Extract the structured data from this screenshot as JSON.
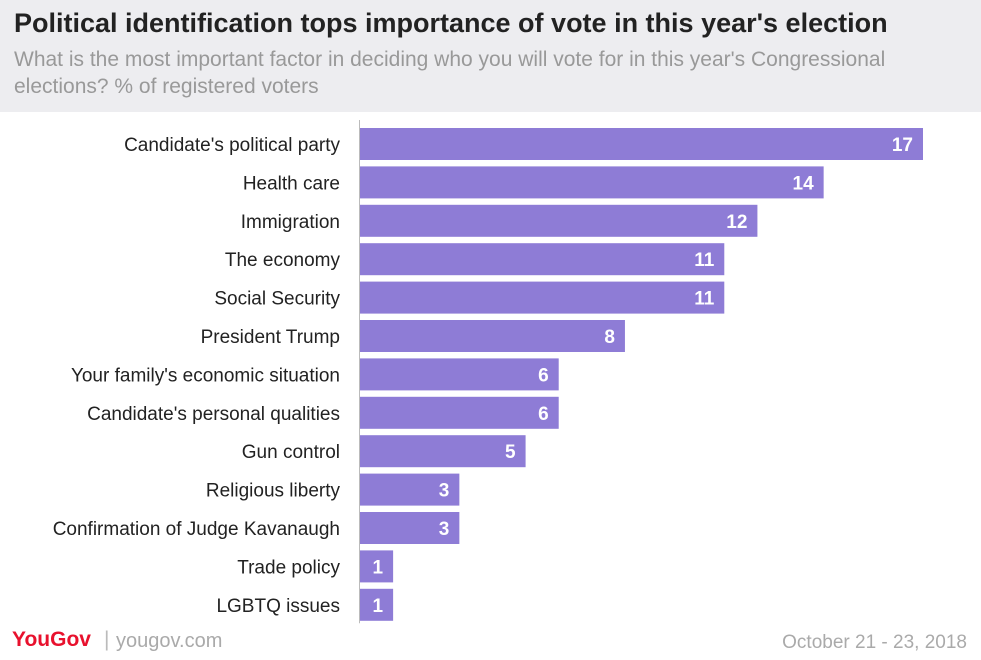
{
  "title": "Political identification tops importance of vote in this year's election",
  "subtitle": "What is the most important factor in deciding who you will vote for in this year's Congressional elections? % of registered voters",
  "footer": {
    "brand": "YouGov",
    "separator": "|",
    "site": "yougov.com",
    "date": "October 21 - 23, 2018"
  },
  "colors": {
    "bar": "#8e7cd6",
    "axis": "#bbbbbb",
    "label": "#222222",
    "value_label": "#ffffff"
  },
  "chart_data": {
    "type": "bar",
    "orientation": "horizontal",
    "categories": [
      "Candidate's political party",
      "Health care",
      "Immigration",
      "The economy",
      "Social Security",
      "President Trump",
      "Your family's economic situation",
      "Candidate's personal qualities",
      "Gun control",
      "Religious liberty",
      "Confirmation of Judge Kavanaugh",
      "Trade policy",
      "LGBTQ issues"
    ],
    "values": [
      17,
      14,
      12,
      11,
      11,
      8,
      6,
      6,
      5,
      3,
      3,
      1,
      1
    ],
    "xlim": [
      0,
      17
    ],
    "unit": "%"
  }
}
